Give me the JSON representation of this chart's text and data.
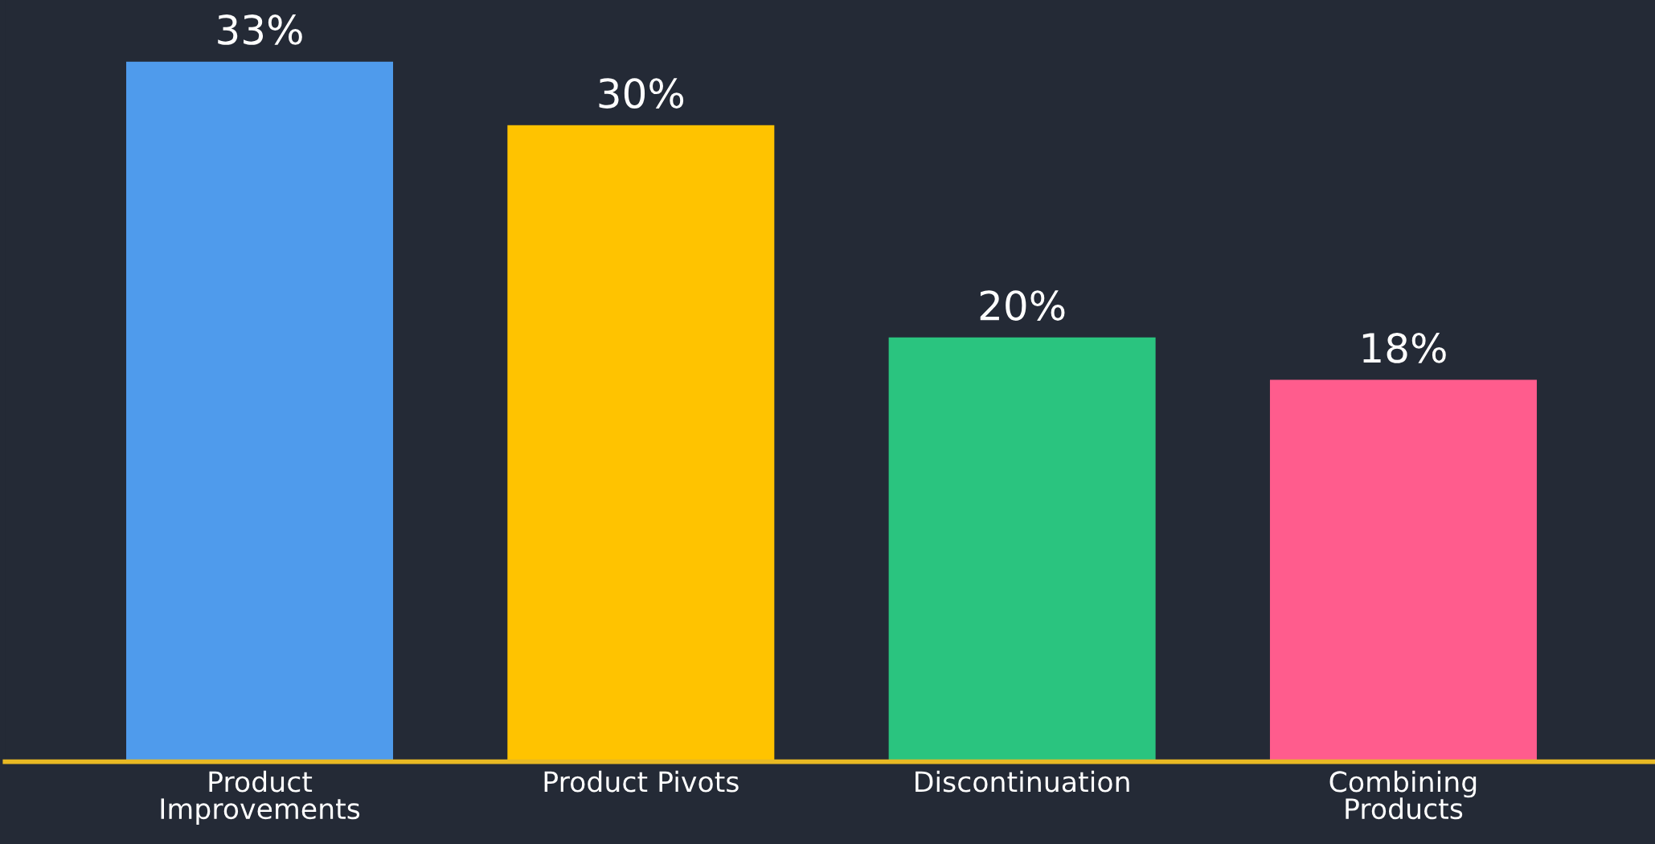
{
  "chart_data": {
    "type": "bar",
    "categories": [
      "Product\nImprovements",
      "Product Pivots",
      "Discontinuation",
      "Combining\nProducts"
    ],
    "values": [
      33,
      30,
      20,
      18
    ],
    "colors": [
      "#4f9bec",
      "#ffc300",
      "#2ac47f",
      "#ff5c8d"
    ],
    "value_labels": [
      "33%",
      "30%",
      "20%",
      "18%"
    ],
    "grid": false,
    "legend": false
  }
}
